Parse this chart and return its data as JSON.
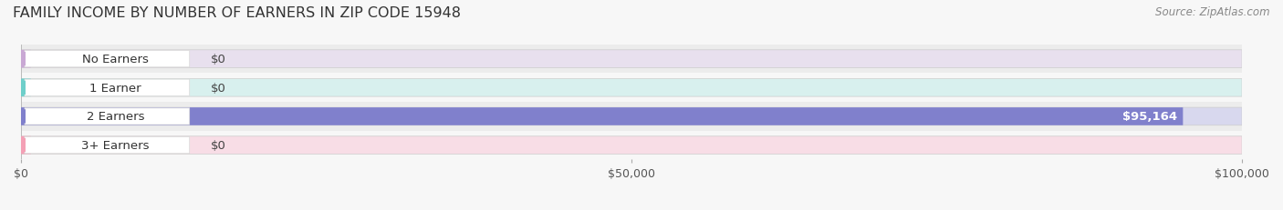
{
  "title": "FAMILY INCOME BY NUMBER OF EARNERS IN ZIP CODE 15948",
  "source": "Source: ZipAtlas.com",
  "categories": [
    "No Earners",
    "1 Earner",
    "2 Earners",
    "3+ Earners"
  ],
  "values": [
    0,
    0,
    95164,
    0
  ],
  "bar_colors": [
    "#c9a8d4",
    "#6ecfca",
    "#8080cc",
    "#f4a0b5"
  ],
  "track_colors": [
    "#e8e0ee",
    "#d8f0ee",
    "#d8d8ee",
    "#f8dde6"
  ],
  "xlim_max": 100000,
  "xticks": [
    0,
    50000,
    100000
  ],
  "xticklabels": [
    "$0",
    "$50,000",
    "$100,000"
  ],
  "bar_height": 0.62,
  "fig_bg": "#f7f7f7",
  "row_bgs": [
    "#ececec",
    "#f7f7f7",
    "#ececec",
    "#f7f7f7"
  ],
  "value_label": "$95,164",
  "value_label_idx": 2,
  "title_fontsize": 11.5,
  "source_fontsize": 8.5,
  "label_fontsize": 9.5
}
